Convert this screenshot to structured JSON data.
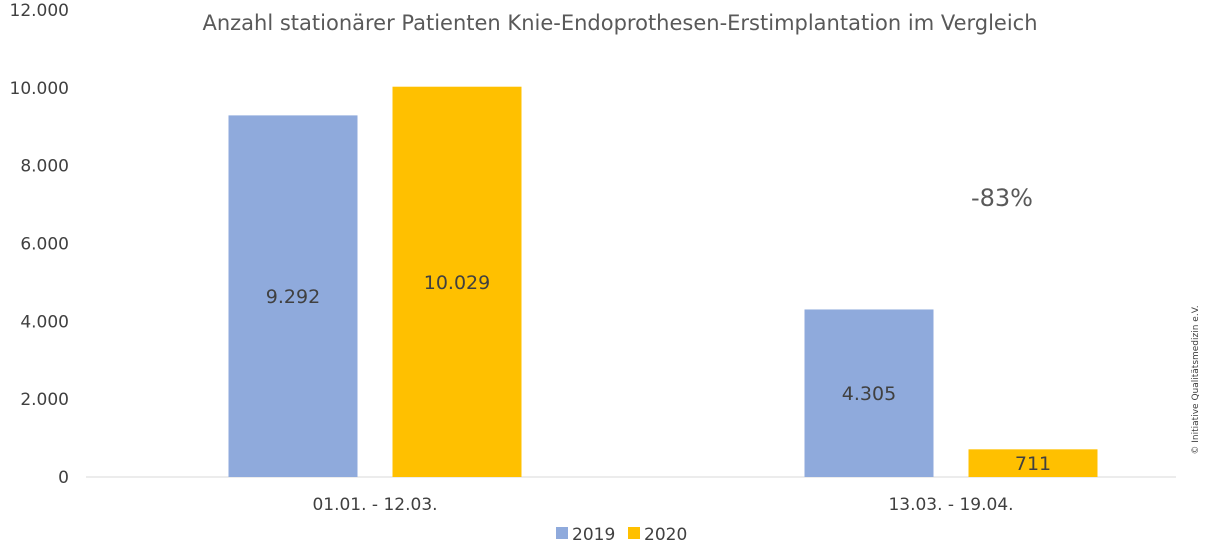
{
  "chart_data": {
    "type": "bar",
    "title": "Anzahl stationärer Patienten Knie-Endoprothesen-Erstimplantation im Vergleich",
    "xlabel": "",
    "ylabel": "",
    "ylim": [
      0,
      12000
    ],
    "yticks": [
      0,
      2000,
      4000,
      6000,
      8000,
      10000,
      12000
    ],
    "ytick_labels": [
      "0",
      "2.000",
      "4.000",
      "6.000",
      "8.000",
      "10.000",
      "12.000"
    ],
    "categories": [
      "01.01. - 12.03.",
      "13.03. - 19.04."
    ],
    "series": [
      {
        "name": "2019",
        "color": "#8faadc",
        "values": [
          9292,
          4305
        ],
        "labels": [
          "9.292",
          "4.305"
        ]
      },
      {
        "name": "2020",
        "color": "#ffc000",
        "values": [
          10029,
          711
        ],
        "labels": [
          "10.029",
          "711"
        ]
      }
    ],
    "grid": false,
    "legend": "bottom",
    "annotation": "-83%",
    "credit": "© Initiative Qualitätsmedizin e.V."
  }
}
